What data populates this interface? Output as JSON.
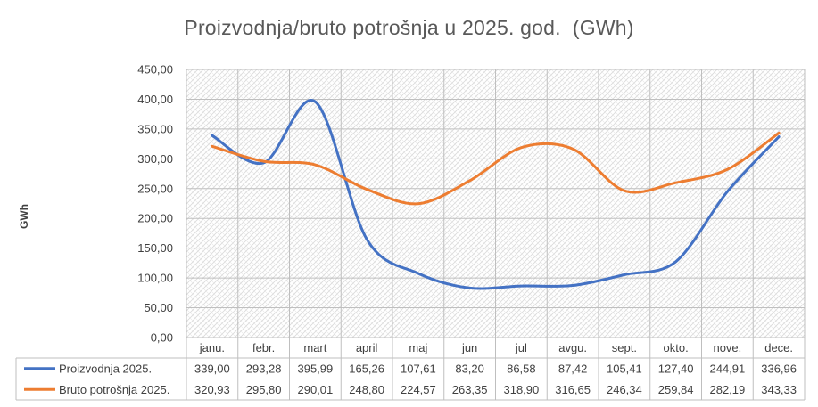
{
  "chart_data": {
    "type": "line",
    "title": "Proizvodnja/bruto potrošnja u 2025. god.  (GWh)",
    "ylabel": "GWh",
    "ylim": [
      0,
      450
    ],
    "ytick_step": 50,
    "grid": true,
    "legend": "data-table",
    "categories": [
      "janu.",
      "febr.",
      "mart",
      "april",
      "maj",
      "jun",
      "jul",
      "avgu.",
      "sept.",
      "okto.",
      "nove.",
      "dece."
    ],
    "series": [
      {
        "name": "Proizvodnja 2025.",
        "color": "#4472C4",
        "values": [
          339.0,
          293.28,
          395.99,
          165.26,
          107.61,
          83.2,
          86.58,
          87.42,
          105.41,
          127.4,
          244.91,
          336.96
        ],
        "labels": [
          "339,00",
          "293,28",
          "395,99",
          "165,26",
          "107,61",
          "83,20",
          "86,58",
          "87,42",
          "105,41",
          "127,40",
          "244,91",
          "336,96"
        ]
      },
      {
        "name": "Bruto potrošnja 2025.",
        "color": "#ED7D31",
        "values": [
          320.93,
          295.8,
          290.01,
          248.8,
          224.57,
          263.35,
          318.9,
          316.65,
          246.34,
          259.84,
          282.19,
          343.33
        ],
        "labels": [
          "320,93",
          "295,80",
          "290,01",
          "248,80",
          "224,57",
          "263,35",
          "318,90",
          "316,65",
          "246,34",
          "259,84",
          "282,19",
          "343,33"
        ]
      }
    ],
    "ytick_labels": [
      "0,00",
      "50,00",
      "100,00",
      "150,00",
      "200,00",
      "250,00",
      "300,00",
      "350,00",
      "400,00",
      "450,00"
    ]
  }
}
